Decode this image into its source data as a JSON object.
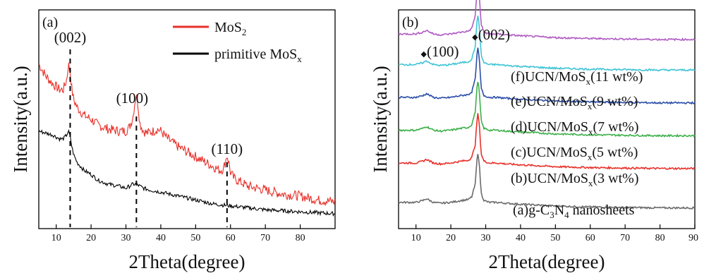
{
  "chart_data": [
    {
      "type": "line",
      "panel_label": "(a)",
      "xlabel": "2Theta(degree)",
      "ylabel": "Intensity(a.u.)",
      "xlim": [
        5,
        90
      ],
      "xticks": [
        "10",
        "20",
        "30",
        "40",
        "50",
        "60",
        "70",
        "80"
      ],
      "legend": {
        "position": "top-right",
        "entries": [
          {
            "name": "MoS",
            "sub": "2",
            "color": "#e8312a"
          },
          {
            "name": "primitive MoS",
            "sub": "x",
            "color": "#000000"
          }
        ]
      },
      "peak_labels": [
        {
          "text": "(002)",
          "x": 14
        },
        {
          "text": "(100)",
          "x": 33
        },
        {
          "text": "(110)",
          "x": 59
        }
      ],
      "series": [
        {
          "name": "MoS2",
          "color": "#e8312a",
          "x": [
            5,
            7,
            9,
            11,
            12,
            13,
            13.5,
            14,
            14.5,
            15,
            16,
            18,
            20,
            22,
            25,
            28,
            30,
            31,
            32,
            32.5,
            33,
            33.5,
            34,
            35,
            36,
            38,
            39,
            40,
            41,
            42,
            45,
            48,
            50,
            52,
            54,
            56,
            57,
            58,
            58.5,
            59,
            59.5,
            60,
            61,
            63,
            65,
            70,
            75,
            80,
            85,
            90
          ],
          "y": [
            0.78,
            0.72,
            0.68,
            0.65,
            0.65,
            0.7,
            0.78,
            0.74,
            0.65,
            0.6,
            0.56,
            0.52,
            0.5,
            0.47,
            0.45,
            0.44,
            0.44,
            0.46,
            0.51,
            0.58,
            0.63,
            0.57,
            0.48,
            0.44,
            0.43,
            0.44,
            0.45,
            0.44,
            0.42,
            0.4,
            0.36,
            0.33,
            0.31,
            0.29,
            0.27,
            0.25,
            0.24,
            0.25,
            0.28,
            0.32,
            0.28,
            0.23,
            0.2,
            0.18,
            0.16,
            0.14,
            0.12,
            0.11,
            0.09,
            0.08
          ]
        },
        {
          "name": "primitive MoSx",
          "color": "#000000",
          "x": [
            5,
            7,
            9,
            11,
            12,
            13,
            13.5,
            14,
            14.5,
            15,
            16,
            18,
            20,
            22,
            25,
            28,
            30,
            31,
            32,
            33,
            34,
            35,
            37,
            40,
            45,
            50,
            55,
            60,
            65,
            70,
            75,
            80,
            85,
            90
          ],
          "y": [
            0.44,
            0.43,
            0.42,
            0.4,
            0.4,
            0.42,
            0.44,
            0.41,
            0.36,
            0.32,
            0.28,
            0.24,
            0.22,
            0.19,
            0.17,
            0.16,
            0.15,
            0.16,
            0.17,
            0.17,
            0.16,
            0.15,
            0.14,
            0.13,
            0.11,
            0.09,
            0.07,
            0.06,
            0.05,
            0.04,
            0.035,
            0.03,
            0.025,
            0.02
          ]
        }
      ]
    },
    {
      "type": "line",
      "panel_label": "(b)",
      "xlabel": "2Theta(degree)",
      "ylabel": "Intensity(a.u.)",
      "xlim": [
        5,
        90
      ],
      "xticks": [
        "10",
        "20",
        "30",
        "40",
        "50",
        "60",
        "70",
        "80",
        "90"
      ],
      "peak_labels": [
        {
          "text": "(100)",
          "x": 13,
          "marker": "◆"
        },
        {
          "text": "(002)",
          "x": 27.7,
          "marker": "◆"
        }
      ],
      "series": [
        {
          "name": "(a)g-C3N4 nanosheets",
          "label_main": "(a)g-C",
          "label_parts": [
            "3",
            "N",
            "4",
            " nanosheets"
          ],
          "color": "#6b6b6b",
          "baseline": 0.12
        },
        {
          "name": "(b)UCN/MoSx(3 wt%)",
          "label_main": "(b)UCN/MoS",
          "label_sub": "x",
          "label_tail": "(3 wt%)",
          "color": "#e8312a",
          "baseline": 0.3
        },
        {
          "name": "(c)UCN/MoSx(5 wt%)",
          "label_main": "(c)UCN/MoS",
          "label_sub": "x",
          "label_tail": "(5 wt%)",
          "color": "#3db04a",
          "baseline": 0.45
        },
        {
          "name": "(d)UCN/MoSx(7 wt%)",
          "label_main": "(d)UCN/MoS",
          "label_sub": "x",
          "label_tail": "(7 wt%)",
          "color": "#2c4ea8",
          "baseline": 0.6
        },
        {
          "name": "(e)UCN/MoSx(9 wt%)",
          "label_main": "(e)UCN/MoS",
          "label_sub": "x",
          "label_tail": "(9 wt%)",
          "color": "#3fc4d6",
          "baseline": 0.75
        },
        {
          "name": "(f)UCN/MoSx(11 wt%)",
          "label_main": "(f)UCN/MoS",
          "label_sub": "x",
          "label_tail": "(11 wt%)",
          "color": "#b05cc2",
          "baseline": 0.89
        }
      ],
      "profile": {
        "x": [
          5,
          8,
          10,
          12,
          13,
          14,
          15,
          17,
          20,
          23,
          25,
          26,
          27,
          27.5,
          27.8,
          28.2,
          28.7,
          29.5,
          31,
          33,
          36,
          40,
          45,
          50,
          60,
          70,
          80,
          90
        ],
        "dy": [
          0.0,
          0.0,
          0.0,
          0.02,
          0.04,
          0.02,
          0.0,
          -0.01,
          0.0,
          0.02,
          0.03,
          0.06,
          0.2,
          0.46,
          0.55,
          0.4,
          0.1,
          0.02,
          0.0,
          0.0,
          -0.01,
          -0.02,
          -0.03,
          -0.04,
          -0.05,
          -0.055,
          -0.06,
          -0.06
        ]
      }
    }
  ]
}
